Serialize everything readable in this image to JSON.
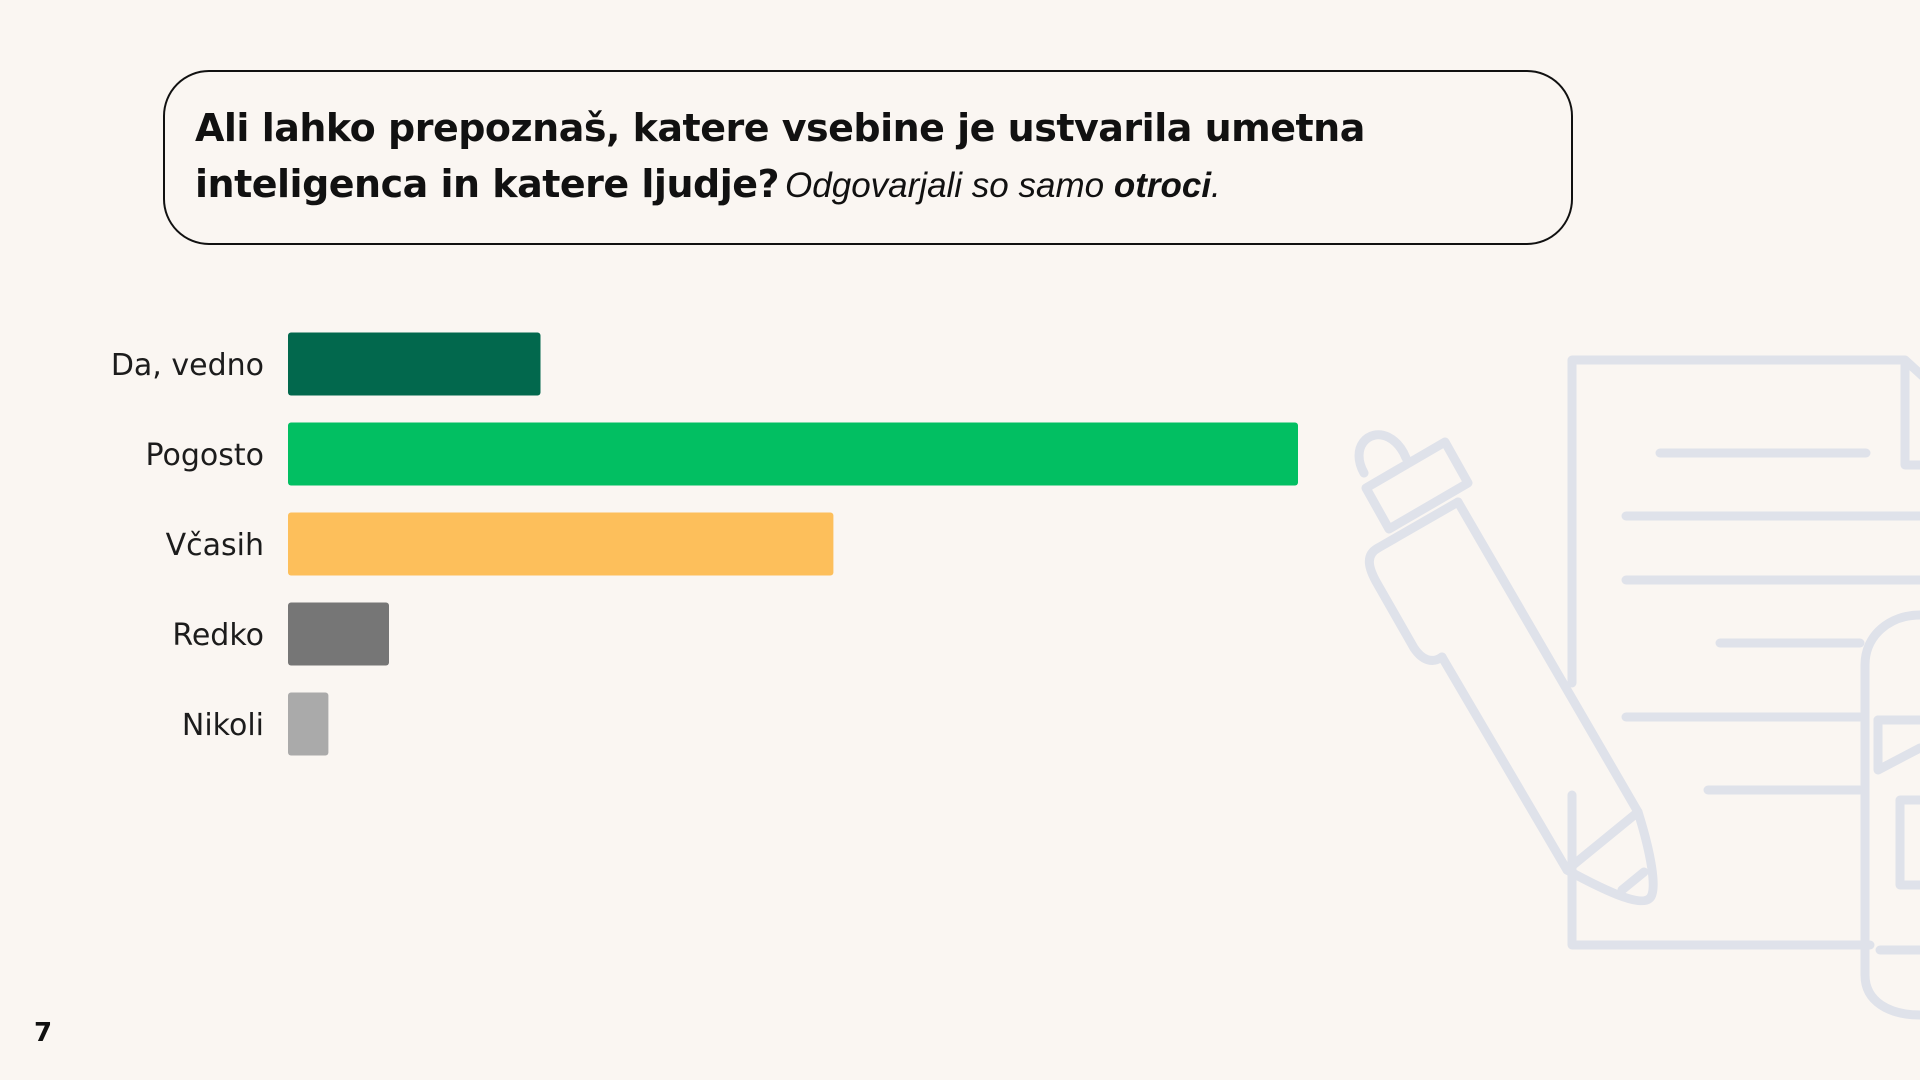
{
  "header": {
    "question": "Ali lahko prepoznaš, katere vsebine je ustvarila umetna inteligenca in katere ljudje?",
    "note_prefix": "Odgovarjali so samo ",
    "note_emphasis": "otroci",
    "note_suffix": "."
  },
  "page_number": "7",
  "decoration": {
    "icon": "document-pencil-icon",
    "color": "#dfe2ea"
  },
  "chart_data": {
    "type": "bar",
    "orientation": "horizontal",
    "categories": [
      "Da, vedno",
      "Pogosto",
      "Včasih",
      "Redko",
      "Nikoli"
    ],
    "values": [
      25,
      100,
      54,
      10,
      4
    ],
    "colors": [
      "#02684d",
      "#02bf62",
      "#fdbf5b",
      "#767676",
      "#aaaaaa"
    ],
    "xlim": [
      0,
      100
    ],
    "grid": false,
    "legend": "none"
  }
}
